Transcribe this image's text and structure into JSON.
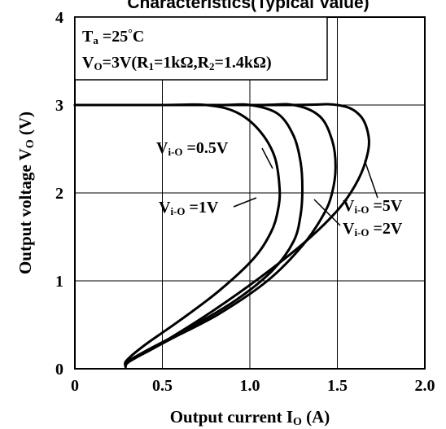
{
  "chart_data": {
    "type": "line",
    "title": "Characteristics(Typical Value)",
    "xlabel": {
      "main": "Output current I",
      "sub": "O",
      "unit": " (A)"
    },
    "ylabel": {
      "main": "Output voltage V",
      "sub": "O",
      "unit": " (V)"
    },
    "xlim": [
      0,
      2.0
    ],
    "ylim": [
      0,
      4
    ],
    "x_ticks": [
      0,
      0.5,
      1.0,
      1.5,
      2.0
    ],
    "x_tick_labels": [
      "0",
      "0.5",
      "1.0",
      "1.5",
      "2.0"
    ],
    "y_ticks": [
      0,
      1,
      2,
      3,
      4
    ],
    "y_tick_labels": [
      "0",
      "1",
      "2",
      "3",
      "4"
    ],
    "grid": true,
    "conditions": {
      "line1": {
        "a": "T",
        "a_sub": "a",
        "b": " =25",
        "deg": "°",
        "c": "C"
      },
      "line2": {
        "a": "V",
        "a_sub": "O",
        "b": "=3V(R",
        "b_sub": "1",
        "c": "=1kΩ,R",
        "c_sub": "2",
        "d": "=1.4kΩ)"
      }
    },
    "series": [
      {
        "name": "Vi-o=0.5V",
        "label": {
          "v": "V",
          "sub": "i-O",
          "rest": " =0.5V"
        },
        "x": [
          0,
          0.5,
          0.75,
          0.92,
          1.05,
          1.14,
          1.17,
          1.16,
          1.12,
          1.02,
          0.82,
          0.6,
          0.42,
          0.33,
          0.29,
          0.29
        ],
        "y": [
          3.0,
          3.0,
          3.0,
          2.92,
          2.72,
          2.42,
          2.05,
          1.8,
          1.55,
          1.25,
          0.88,
          0.55,
          0.3,
          0.16,
          0.08,
          0.04
        ]
      },
      {
        "name": "Vi-o=1V",
        "label": {
          "v": "V",
          "sub": "i-O",
          "rest": " =1V"
        },
        "x": [
          0,
          0.8,
          1.0,
          1.16,
          1.25,
          1.29,
          1.3,
          1.29,
          1.25,
          1.13,
          0.92,
          0.66,
          0.45,
          0.34,
          0.29,
          0.29
        ],
        "y": [
          3.0,
          3.0,
          3.0,
          2.9,
          2.65,
          2.35,
          2.05,
          1.75,
          1.45,
          1.12,
          0.78,
          0.47,
          0.25,
          0.13,
          0.07,
          0.03
        ]
      },
      {
        "name": "Vi-o=2V",
        "label": {
          "v": "V",
          "sub": "i-O",
          "rest": " =2V"
        },
        "x": [
          0,
          1.0,
          1.25,
          1.4,
          1.47,
          1.49,
          1.47,
          1.42,
          1.3,
          1.1,
          0.82,
          0.55,
          0.4,
          0.32,
          0.29,
          0.29
        ],
        "y": [
          3.0,
          3.0,
          3.0,
          2.87,
          2.6,
          2.3,
          2.0,
          1.75,
          1.4,
          1.0,
          0.62,
          0.34,
          0.18,
          0.1,
          0.05,
          0.03
        ]
      },
      {
        "name": "Vi-o=5V",
        "label": {
          "v": "V",
          "sub": "i-O",
          "rest": " =5V"
        },
        "x": [
          0,
          1.2,
          1.5,
          1.63,
          1.68,
          1.66,
          1.6,
          1.5,
          1.32,
          1.06,
          0.76,
          0.52,
          0.38,
          0.31,
          0.29,
          0.29
        ],
        "y": [
          3.0,
          3.0,
          3.0,
          2.88,
          2.62,
          2.35,
          2.08,
          1.8,
          1.45,
          1.04,
          0.62,
          0.32,
          0.16,
          0.08,
          0.04,
          0.02
        ]
      }
    ]
  },
  "colors": {
    "line": "#000000",
    "background": "#ffffff",
    "grid": "#000000"
  }
}
